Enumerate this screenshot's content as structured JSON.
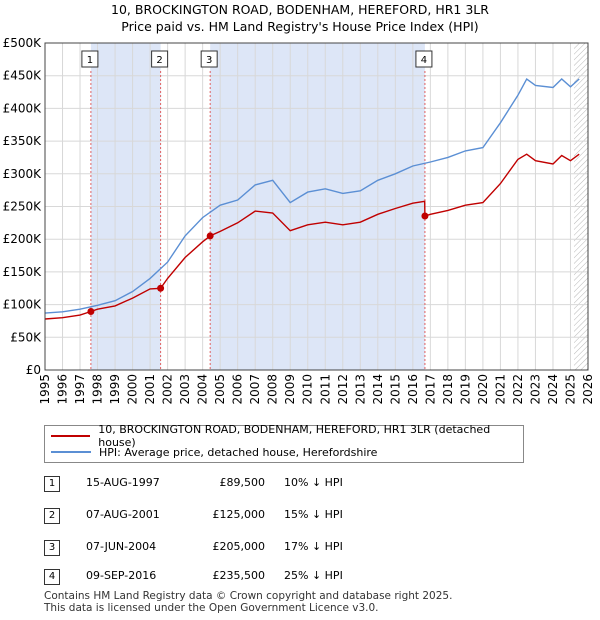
{
  "title_line1": "10, BROCKINGTON ROAD, BODENHAM, HEREFORD, HR1 3LR",
  "title_line2": "Price paid vs. HM Land Registry's House Price Index (HPI)",
  "colors": {
    "price_line": "#c00000",
    "hpi_line": "#5b8fd4",
    "shade": "#dde6f7",
    "grid": "#d8d8d8"
  },
  "chart_data": {
    "type": "line",
    "xlim": [
      1995,
      2026
    ],
    "ylim": [
      0,
      500000
    ],
    "x_ticks": [
      "1995",
      "1996",
      "1997",
      "1998",
      "1999",
      "2000",
      "2001",
      "2002",
      "2003",
      "2004",
      "2005",
      "2006",
      "2007",
      "2008",
      "2009",
      "2010",
      "2011",
      "2012",
      "2013",
      "2014",
      "2015",
      "2016",
      "2017",
      "2018",
      "2019",
      "2020",
      "2021",
      "2022",
      "2023",
      "2024",
      "2025",
      "2026"
    ],
    "y_ticks": [
      {
        "value": 0,
        "label": "£0"
      },
      {
        "value": 50000,
        "label": "£50K"
      },
      {
        "value": 100000,
        "label": "£100K"
      },
      {
        "value": 150000,
        "label": "£150K"
      },
      {
        "value": 200000,
        "label": "£200K"
      },
      {
        "value": 250000,
        "label": "£250K"
      },
      {
        "value": 300000,
        "label": "£300K"
      },
      {
        "value": 350000,
        "label": "£350K"
      },
      {
        "value": 400000,
        "label": "£400K"
      },
      {
        "value": 450000,
        "label": "£450K"
      },
      {
        "value": 500000,
        "label": "£500K"
      }
    ],
    "shaded_ranges": [
      [
        1997.62,
        2001.6
      ],
      [
        2004.43,
        2016.69
      ]
    ],
    "forecast_start": 2025.2,
    "series": [
      {
        "name": "10, BROCKINGTON ROAD, BODENHAM, HEREFORD, HR1 3LR (detached house)",
        "x": [
          1995,
          1996,
          1997,
          1997.62,
          1998,
          1999,
          2000,
          2001,
          2001.6,
          2002,
          2003,
          2004,
          2004.43,
          2005,
          2006,
          2007,
          2008,
          2009,
          2010,
          2011,
          2012,
          2013,
          2014,
          2015,
          2016,
          2016.68,
          2016.69,
          2017,
          2018,
          2019,
          2020,
          2021,
          2022,
          2022.5,
          2023,
          2024,
          2024.5,
          2025,
          2025.5
        ],
        "y": [
          78000,
          80000,
          84000,
          89500,
          93000,
          98000,
          110000,
          124000,
          125000,
          140000,
          172000,
          196000,
          205000,
          212000,
          225000,
          243000,
          240000,
          213000,
          222000,
          226000,
          222000,
          226000,
          238000,
          247000,
          255000,
          258000,
          235500,
          238000,
          244000,
          252000,
          256000,
          285000,
          322000,
          330000,
          320000,
          315000,
          328000,
          320000,
          330000
        ]
      },
      {
        "name": "HPI: Average price, detached house, Herefordshire",
        "x": [
          1995,
          1996,
          1997,
          1998,
          1999,
          2000,
          2001,
          2002,
          2003,
          2004,
          2005,
          2006,
          2007,
          2008,
          2009,
          2010,
          2011,
          2012,
          2013,
          2014,
          2015,
          2016,
          2017,
          2018,
          2019,
          2020,
          2021,
          2022,
          2022.5,
          2023,
          2024,
          2024.5,
          2025,
          2025.5
        ],
        "y": [
          87000,
          89000,
          93000,
          99000,
          106000,
          120000,
          140000,
          165000,
          205000,
          233000,
          252000,
          260000,
          283000,
          290000,
          256000,
          272000,
          277000,
          270000,
          274000,
          290000,
          300000,
          312000,
          318000,
          325000,
          335000,
          340000,
          378000,
          420000,
          445000,
          435000,
          432000,
          445000,
          433000,
          445000
        ]
      }
    ],
    "sales": [
      {
        "id": "1",
        "date": "15-AUG-1997",
        "x": 1997.62,
        "price": 89500,
        "price_label": "£89,500",
        "hpi": "10% ↓ HPI"
      },
      {
        "id": "2",
        "date": "07-AUG-2001",
        "x": 2001.6,
        "price": 125000,
        "price_label": "£125,000",
        "hpi": "15% ↓ HPI"
      },
      {
        "id": "3",
        "date": "07-JUN-2004",
        "x": 2004.43,
        "price": 205000,
        "price_label": "£205,000",
        "hpi": "17% ↓ HPI"
      },
      {
        "id": "4",
        "date": "09-SEP-2016",
        "x": 2016.69,
        "price": 235500,
        "price_label": "£235,500",
        "hpi": "25% ↓ HPI"
      }
    ]
  },
  "legend": {
    "price_label": "10, BROCKINGTON ROAD, BODENHAM, HEREFORD, HR1 3LR (detached house)",
    "hpi_label": "HPI: Average price, detached house, Herefordshire"
  },
  "footer": {
    "line1": "Contains HM Land Registry data © Crown copyright and database right 2025.",
    "line2": "This data is licensed under the Open Government Licence v3.0."
  }
}
